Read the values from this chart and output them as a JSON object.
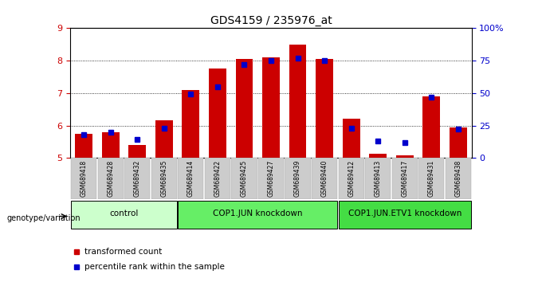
{
  "title": "GDS4159 / 235976_at",
  "samples": [
    "GSM689418",
    "GSM689428",
    "GSM689432",
    "GSM689435",
    "GSM689414",
    "GSM689422",
    "GSM689425",
    "GSM689427",
    "GSM689439",
    "GSM689440",
    "GSM689412",
    "GSM689413",
    "GSM689417",
    "GSM689431",
    "GSM689438"
  ],
  "red_values": [
    5.75,
    5.78,
    5.4,
    6.15,
    7.1,
    7.75,
    8.05,
    8.1,
    8.5,
    8.05,
    6.2,
    5.12,
    5.08,
    6.9,
    5.95
  ],
  "blue_values": [
    18,
    20,
    14,
    23,
    49,
    55,
    72,
    75,
    77,
    75,
    23,
    13,
    12,
    47,
    22
  ],
  "group_configs": [
    {
      "label": "control",
      "start": 0,
      "end": 3,
      "color": "#ccffcc"
    },
    {
      "label": "COP1.JUN knockdown",
      "start": 4,
      "end": 9,
      "color": "#66ee66"
    },
    {
      "label": "COP1.JUN.ETV1 knockdown",
      "start": 10,
      "end": 14,
      "color": "#44dd44"
    }
  ],
  "ylim_left": [
    5,
    9
  ],
  "ylim_right": [
    0,
    100
  ],
  "yticks_left": [
    5,
    6,
    7,
    8,
    9
  ],
  "yticks_right": [
    0,
    25,
    50,
    75,
    100
  ],
  "ytick_labels_right": [
    "0",
    "25",
    "50",
    "75",
    "100%"
  ],
  "bar_color": "#cc0000",
  "blue_color": "#0000cc",
  "legend_items": [
    "transformed count",
    "percentile rank within the sample"
  ],
  "genotype_label": "genotype/variation"
}
